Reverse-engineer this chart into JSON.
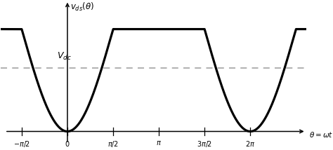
{
  "title": "$v_{ds}(\\theta)$",
  "xlabel": "$\\theta=\\omega t$",
  "ylabel_dc": "$V_{dc}$",
  "bg_color": "#ffffff",
  "waveform_color": "#000000",
  "dashed_color": "#aaaaaa",
  "x_ticks": [
    -1.5707963,
    0,
    1.5707963,
    3.14159265,
    4.71238898,
    6.28318531
  ],
  "x_tick_labels": [
    "$-\\pi/2$",
    "$0$",
    "$\\pi/2$",
    "$\\pi$",
    "$3\\pi/2$",
    "$2\\pi$"
  ],
  "x_min": -2.3,
  "x_max": 8.2,
  "y_min": -0.12,
  "y_max": 1.28,
  "vdc_level": 0.62,
  "vmax_level": 1.0,
  "line_width": 2.3,
  "pi": 3.14159265358979
}
